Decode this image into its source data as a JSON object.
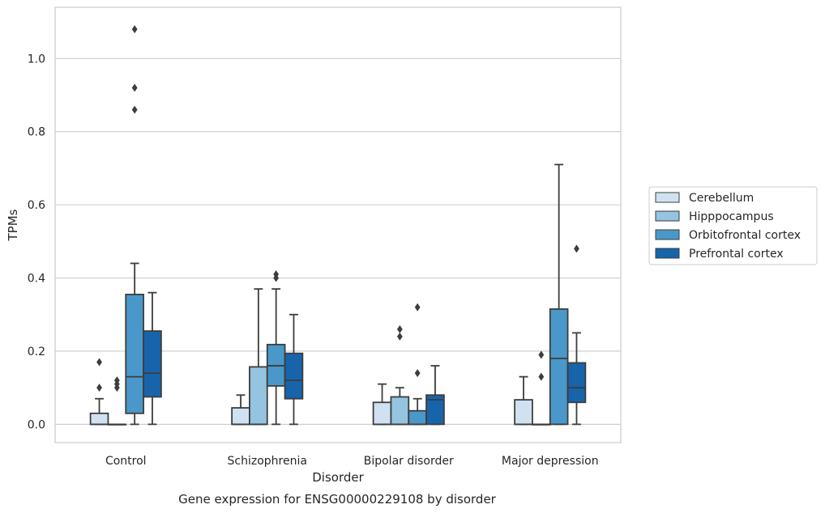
{
  "chart_data": {
    "type": "box",
    "caption": "Gene expression for ENSG00000229108 by disorder",
    "xlabel": "Disorder",
    "ylabel": "TPMs",
    "ylim": [
      -0.05,
      1.14
    ],
    "yticks": [
      0.0,
      0.2,
      0.4,
      0.6,
      0.8,
      1.0
    ],
    "ytick_labels": [
      "0.0",
      "0.2",
      "0.4",
      "0.6",
      "0.8",
      "1.0"
    ],
    "grid": "horizontal",
    "legend_position": "right",
    "categories": [
      "Control",
      "Schizophrenia",
      "Bipolar disorder",
      "Major depression"
    ],
    "series": [
      {
        "name": "Cerebellum",
        "color": "#d0e1f2",
        "boxes": [
          {
            "min": 0.0,
            "q1": 0.0,
            "median": 0.0,
            "q3": 0.03,
            "max": 0.07,
            "outliers": [
              0.1,
              0.17
            ]
          },
          {
            "min": 0.0,
            "q1": 0.0,
            "median": 0.0,
            "q3": 0.045,
            "max": 0.08,
            "outliers": []
          },
          {
            "min": 0.0,
            "q1": 0.0,
            "median": 0.0,
            "q3": 0.06,
            "max": 0.11,
            "outliers": []
          },
          {
            "min": 0.0,
            "q1": 0.0,
            "median": 0.0,
            "q3": 0.067,
            "max": 0.13,
            "outliers": []
          }
        ]
      },
      {
        "name": "Hipppocampus",
        "color": "#94c4df",
        "boxes": [
          {
            "min": 0.0,
            "q1": 0.0,
            "median": 0.0,
            "q3": 0.0,
            "max": 0.0,
            "outliers": [
              0.1,
              0.11,
              0.12
            ]
          },
          {
            "min": 0.0,
            "q1": 0.0,
            "median": 0.0,
            "q3": 0.157,
            "max": 0.37,
            "outliers": []
          },
          {
            "min": 0.0,
            "q1": 0.0,
            "median": 0.0,
            "q3": 0.075,
            "max": 0.1,
            "outliers": [
              0.24,
              0.26
            ]
          },
          {
            "min": 0.0,
            "q1": 0.0,
            "median": 0.0,
            "q3": 0.0,
            "max": 0.0,
            "outliers": [
              0.13,
              0.19
            ]
          }
        ]
      },
      {
        "name": "Orbitofrontal cortex",
        "color": "#4a98c9",
        "boxes": [
          {
            "min": 0.0,
            "q1": 0.03,
            "median": 0.13,
            "q3": 0.355,
            "max": 0.44,
            "outliers": [
              0.86,
              0.92,
              1.08
            ]
          },
          {
            "min": 0.0,
            "q1": 0.105,
            "median": 0.16,
            "q3": 0.218,
            "max": 0.37,
            "outliers": [
              0.4,
              0.41
            ]
          },
          {
            "min": 0.0,
            "q1": 0.0,
            "median": 0.0,
            "q3": 0.037,
            "max": 0.07,
            "outliers": [
              0.14,
              0.32
            ]
          },
          {
            "min": 0.0,
            "q1": 0.0,
            "median": 0.18,
            "q3": 0.315,
            "max": 0.71,
            "outliers": []
          }
        ]
      },
      {
        "name": "Prefrontal cortex",
        "color": "#1764ab",
        "boxes": [
          {
            "min": 0.0,
            "q1": 0.075,
            "median": 0.14,
            "q3": 0.255,
            "max": 0.36,
            "outliers": []
          },
          {
            "min": 0.0,
            "q1": 0.07,
            "median": 0.12,
            "q3": 0.194,
            "max": 0.3,
            "outliers": []
          },
          {
            "min": 0.0,
            "q1": 0.0,
            "median": 0.067,
            "q3": 0.08,
            "max": 0.16,
            "outliers": []
          },
          {
            "min": 0.0,
            "q1": 0.06,
            "median": 0.1,
            "q3": 0.168,
            "max": 0.25,
            "outliers": [
              0.48
            ]
          }
        ]
      }
    ]
  }
}
